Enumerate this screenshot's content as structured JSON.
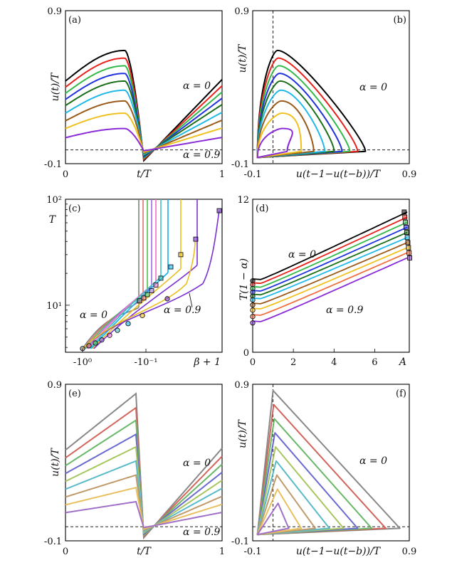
{
  "figure": {
    "colors_main": [
      "#000000",
      "#e8221c",
      "#33b84a",
      "#2233dd",
      "#1a6e18",
      "#20b8e8",
      "#9a5a1a",
      "#f0c020",
      "#8a2bd8"
    ],
    "colors_soft": [
      "#888888",
      "#d2655c",
      "#68b868",
      "#6a6ad0",
      "#a8c660",
      "#5abac8",
      "#c09a6a",
      "#e8c060",
      "#a070c8"
    ],
    "colors_mid": [
      "#808080",
      "#e07070",
      "#50c050",
      "#9a70e0",
      "#f070c8",
      "#40c0c0",
      "#10b0f0",
      "#e8c020",
      "#7a30d0"
    ],
    "bottom_right_axis_label": "β + 1"
  },
  "chart_data": [
    {
      "panel": "(a)",
      "type": "line",
      "xlabel": "t/T",
      "ylabel": "u(t)/T",
      "xlim": [
        0,
        1
      ],
      "ylim": [
        -0.1,
        0.9
      ],
      "xticks": [
        "0",
        "1"
      ],
      "yticks": [
        "-0.1",
        "0.9"
      ],
      "annotations": [
        "α = 0",
        "α = 0.9"
      ],
      "hline": -0.01,
      "series": [
        {
          "alpha": 0,
          "start": 0.44,
          "peak": 0.64,
          "peak_x": 0.38
        },
        {
          "alpha": 0.1,
          "start": 0.4,
          "peak": 0.59,
          "peak_x": 0.38
        },
        {
          "alpha": 0.2,
          "start": 0.36,
          "peak": 0.54,
          "peak_x": 0.38
        },
        {
          "alpha": 0.3,
          "start": 0.32,
          "peak": 0.49,
          "peak_x": 0.38
        },
        {
          "alpha": 0.4,
          "start": 0.28,
          "peak": 0.44,
          "peak_x": 0.38
        },
        {
          "alpha": 0.5,
          "start": 0.23,
          "peak": 0.38,
          "peak_x": 0.38
        },
        {
          "alpha": 0.6,
          "start": 0.18,
          "peak": 0.31,
          "peak_x": 0.38
        },
        {
          "alpha": 0.7,
          "start": 0.13,
          "peak": 0.23,
          "peak_x": 0.38
        },
        {
          "alpha": 0.8,
          "start": 0.07,
          "peak": 0.13,
          "peak_x": 0.38
        }
      ]
    },
    {
      "panel": "(b)",
      "type": "line",
      "xlabel": "u(t−1−u(t−b))/T",
      "ylabel": "u(t)/T",
      "xlim": [
        -0.1,
        0.9
      ],
      "ylim": [
        -0.1,
        0.9
      ],
      "xticks": [
        "-0.1",
        "0.9"
      ],
      "yticks": [
        "-0.1",
        "0.9"
      ],
      "annotations": [
        "α = 0"
      ],
      "hline": -0.01,
      "vline": 0.03,
      "series": [
        {
          "alpha": 0,
          "peak": 0.64,
          "right": 0.62
        },
        {
          "alpha": 0.1,
          "peak": 0.59,
          "right": 0.57
        },
        {
          "alpha": 0.2,
          "peak": 0.54,
          "right": 0.52
        },
        {
          "alpha": 0.3,
          "peak": 0.49,
          "right": 0.47
        },
        {
          "alpha": 0.4,
          "peak": 0.44,
          "right": 0.42
        },
        {
          "alpha": 0.5,
          "peak": 0.38,
          "right": 0.36
        },
        {
          "alpha": 0.6,
          "peak": 0.31,
          "right": 0.29
        },
        {
          "alpha": 0.7,
          "peak": 0.23,
          "right": 0.21
        },
        {
          "alpha": 0.8,
          "peak": 0.13,
          "right": 0.12
        }
      ]
    },
    {
      "panel": "(c)",
      "type": "line",
      "xlabel": "β + 1",
      "ylabel": "T",
      "yscale": "log",
      "ylim": [
        3.6,
        100
      ],
      "xticks": [
        "-10⁰",
        "-10⁻¹"
      ],
      "yticks": [
        "10¹",
        "10²"
      ],
      "annotations": [
        "α = 0",
        "α = 0.9"
      ],
      "series_alpha": [
        0,
        0.1,
        0.2,
        0.3,
        0.4,
        0.5,
        0.6,
        0.7,
        0.8,
        0.9
      ]
    },
    {
      "panel": "(d)",
      "type": "line",
      "xlabel": "A",
      "ylabel": "T(1 − α)",
      "xlim": [
        0,
        7.7
      ],
      "ylim": [
        0,
        12
      ],
      "xticks": [
        "0",
        "2",
        "4",
        "6"
      ],
      "yticks": [
        "0",
        "12"
      ],
      "annotations": [
        "α = 0",
        "α = 0.9"
      ],
      "series": [
        {
          "alpha": 0,
          "y0": 5.6,
          "y_end": 11.0
        },
        {
          "alpha": 0.1,
          "y0": 5.3,
          "y_end": 10.6
        },
        {
          "alpha": 0.2,
          "y0": 5.0,
          "y_end": 10.2
        },
        {
          "alpha": 0.3,
          "y0": 4.7,
          "y_end": 9.8
        },
        {
          "alpha": 0.4,
          "y0": 4.4,
          "y_end": 9.4
        },
        {
          "alpha": 0.5,
          "y0": 4.1,
          "y_end": 9.0
        },
        {
          "alpha": 0.6,
          "y0": 3.7,
          "y_end": 8.6
        },
        {
          "alpha": 0.7,
          "y0": 3.3,
          "y_end": 8.2
        },
        {
          "alpha": 0.8,
          "y0": 2.8,
          "y_end": 7.8
        },
        {
          "alpha": 0.9,
          "y0": 2.3,
          "y_end": 7.4
        }
      ]
    },
    {
      "panel": "(e)",
      "type": "line",
      "xlabel": "t/T",
      "ylabel": "u(t)/T",
      "xlim": [
        0,
        1
      ],
      "ylim": [
        -0.1,
        0.9
      ],
      "xticks": [
        "0",
        "1"
      ],
      "yticks": [
        "-0.1",
        "0.9"
      ],
      "annotations": [
        "α = 0",
        "α = 0.9"
      ],
      "hline": -0.01,
      "series": [
        {
          "alpha": 0,
          "start": 0.48,
          "peak": 0.84
        },
        {
          "alpha": 0.1,
          "start": 0.43,
          "peak": 0.75
        },
        {
          "alpha": 0.2,
          "start": 0.38,
          "peak": 0.67
        },
        {
          "alpha": 0.3,
          "start": 0.33,
          "peak": 0.58
        },
        {
          "alpha": 0.4,
          "start": 0.28,
          "peak": 0.5
        },
        {
          "alpha": 0.5,
          "start": 0.23,
          "peak": 0.41
        },
        {
          "alpha": 0.6,
          "start": 0.18,
          "peak": 0.32
        },
        {
          "alpha": 0.7,
          "start": 0.13,
          "peak": 0.24
        },
        {
          "alpha": 0.8,
          "start": 0.08,
          "peak": 0.15
        }
      ]
    },
    {
      "panel": "(f)",
      "type": "line",
      "xlabel": "u(t−1−u(t−b))/T",
      "ylabel": "u(t)/T",
      "xlim": [
        -0.1,
        0.9
      ],
      "ylim": [
        -0.1,
        0.9
      ],
      "xticks": [
        "-0.1",
        "0.9"
      ],
      "yticks": [
        "-0.1",
        "0.9"
      ],
      "annotations": [
        "α = 0"
      ],
      "hline": -0.01,
      "vline": 0.03,
      "series": [
        {
          "alpha": 0,
          "peak": 0.86,
          "right": 0.84
        },
        {
          "alpha": 0.1,
          "peak": 0.77,
          "right": 0.75
        },
        {
          "alpha": 0.2,
          "peak": 0.68,
          "right": 0.66
        },
        {
          "alpha": 0.3,
          "peak": 0.59,
          "right": 0.57
        },
        {
          "alpha": 0.4,
          "peak": 0.5,
          "right": 0.48
        },
        {
          "alpha": 0.5,
          "peak": 0.41,
          "right": 0.39
        },
        {
          "alpha": 0.6,
          "peak": 0.32,
          "right": 0.3
        },
        {
          "alpha": 0.7,
          "peak": 0.23,
          "right": 0.21
        },
        {
          "alpha": 0.8,
          "peak": 0.14,
          "right": 0.13
        }
      ]
    }
  ]
}
